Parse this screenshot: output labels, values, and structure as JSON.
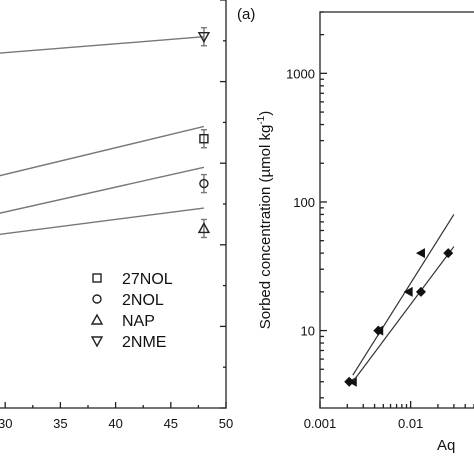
{
  "panel_label": "(a)",
  "chart_data": [
    {
      "type": "line",
      "x_tick_labels": [
        "30",
        "35",
        "40",
        "45",
        "50"
      ],
      "xlim": [
        25,
        50
      ],
      "ylim": [
        0,
        1
      ],
      "series": [
        {
          "name": "27NOL",
          "marker": "square",
          "fit": [
            [
              25,
              0.54
            ],
            [
              48,
              0.69
            ]
          ],
          "points": [
            [
              48,
              0.66
            ]
          ]
        },
        {
          "name": "2NOL",
          "marker": "circle",
          "fit": [
            [
              25,
              0.45
            ],
            [
              48,
              0.59
            ]
          ],
          "points": [
            [
              48,
              0.55
            ]
          ]
        },
        {
          "name": "NAP",
          "marker": "triangle-up",
          "fit": [
            [
              25,
              0.41
            ],
            [
              48,
              0.49
            ]
          ],
          "points": [
            [
              48,
              0.44
            ]
          ]
        },
        {
          "name": "2NME",
          "marker": "triangle-down",
          "fit": [
            [
              25,
              0.86
            ],
            [
              48,
              0.91
            ]
          ],
          "points": [
            [
              48,
              0.91
            ]
          ]
        }
      ],
      "legend_position": "lower-right"
    },
    {
      "type": "scatter",
      "ylabel": "Sorbed concentration (µmol kg",
      "ylabel_sup": "-1",
      "ylabel_tail": ")",
      "xlabel_visible": "Aq",
      "x_scale": "log",
      "y_scale": "log",
      "x_tick_labels": [
        "0.001",
        "0.01"
      ],
      "y_tick_labels": [
        "10",
        "100",
        "1000"
      ],
      "xlim": [
        0.001,
        0.05
      ],
      "ylim": [
        2.5,
        3000
      ],
      "series": [
        {
          "marker": "left-triangle",
          "points": [
            [
              0.0023,
              4.0
            ],
            [
              0.0045,
              10.0
            ],
            [
              0.0095,
              20.0
            ],
            [
              0.013,
              40.0
            ]
          ],
          "fit": [
            [
              0.0023,
              4.5
            ],
            [
              0.03,
              80
            ]
          ]
        },
        {
          "marker": "diamond",
          "points": [
            [
              0.0021,
              4.0
            ],
            [
              0.0044,
              10.0
            ],
            [
              0.013,
              20.0
            ],
            [
              0.026,
              40.0
            ]
          ],
          "fit": [
            [
              0.0023,
              4.0
            ],
            [
              0.03,
              45
            ]
          ]
        }
      ]
    }
  ]
}
